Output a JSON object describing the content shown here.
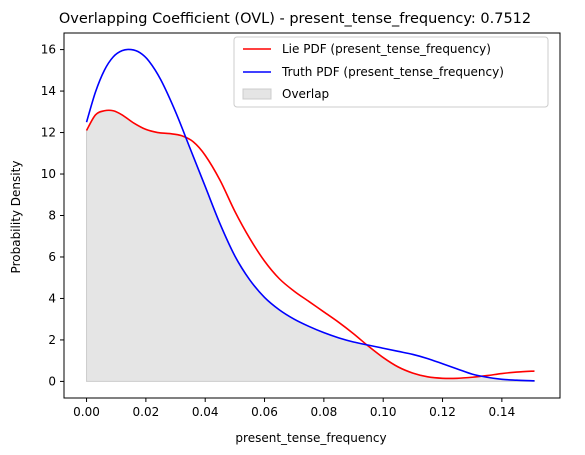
{
  "chart_data": {
    "type": "line",
    "title": "Overlapping Coefficient (OVL) - present_tense_frequency: 0.7512",
    "xlabel": "present_tense_frequency",
    "ylabel": "Probability Density",
    "xlim": [
      -0.0076,
      0.1596
    ],
    "ylim": [
      -0.8,
      16.8
    ],
    "xticks": [
      0.0,
      0.02,
      0.04,
      0.06,
      0.08,
      0.1,
      0.12,
      0.14
    ],
    "xtick_labels": [
      "0.00",
      "0.02",
      "0.04",
      "0.06",
      "0.08",
      "0.10",
      "0.12",
      "0.14"
    ],
    "yticks": [
      0,
      2,
      4,
      6,
      8,
      10,
      12,
      14,
      16
    ],
    "ytick_labels": [
      "0",
      "2",
      "4",
      "6",
      "8",
      "10",
      "12",
      "14",
      "16"
    ],
    "grid": false,
    "legend_position": "top-right",
    "series": [
      {
        "name": "Lie PDF (present_tense_frequency)",
        "color": "#ff0000",
        "x": [
          0.0,
          0.003,
          0.006,
          0.009,
          0.012,
          0.016,
          0.02,
          0.024,
          0.028,
          0.032,
          0.036,
          0.04,
          0.045,
          0.05,
          0.055,
          0.06,
          0.065,
          0.07,
          0.075,
          0.08,
          0.085,
          0.09,
          0.095,
          0.1,
          0.105,
          0.11,
          0.115,
          0.12,
          0.125,
          0.13,
          0.135,
          0.14,
          0.145,
          0.151
        ],
        "y": [
          12.1,
          12.85,
          13.05,
          13.05,
          12.85,
          12.45,
          12.15,
          12.0,
          11.95,
          11.85,
          11.55,
          10.9,
          9.7,
          8.2,
          6.9,
          5.8,
          4.95,
          4.35,
          3.85,
          3.35,
          2.85,
          2.3,
          1.7,
          1.15,
          0.7,
          0.4,
          0.22,
          0.15,
          0.15,
          0.2,
          0.28,
          0.38,
          0.45,
          0.5
        ]
      },
      {
        "name": "Truth PDF (present_tense_frequency)",
        "color": "#0000ff",
        "x": [
          0.0,
          0.003,
          0.006,
          0.009,
          0.012,
          0.015,
          0.018,
          0.021,
          0.025,
          0.03,
          0.035,
          0.04,
          0.045,
          0.05,
          0.055,
          0.06,
          0.065,
          0.07,
          0.075,
          0.08,
          0.085,
          0.09,
          0.095,
          0.1,
          0.105,
          0.11,
          0.115,
          0.12,
          0.125,
          0.13,
          0.135,
          0.14,
          0.145,
          0.151
        ],
        "y": [
          12.5,
          13.95,
          15.0,
          15.65,
          15.95,
          16.0,
          15.85,
          15.45,
          14.55,
          13.0,
          11.2,
          9.4,
          7.6,
          6.05,
          4.9,
          4.05,
          3.45,
          3.0,
          2.65,
          2.35,
          2.1,
          1.9,
          1.75,
          1.6,
          1.45,
          1.3,
          1.1,
          0.85,
          0.6,
          0.35,
          0.2,
          0.1,
          0.06,
          0.03
        ]
      }
    ],
    "overlap": {
      "name": "Overlap",
      "color": "#e5e5e5",
      "edge_color": "#cccccc"
    }
  }
}
